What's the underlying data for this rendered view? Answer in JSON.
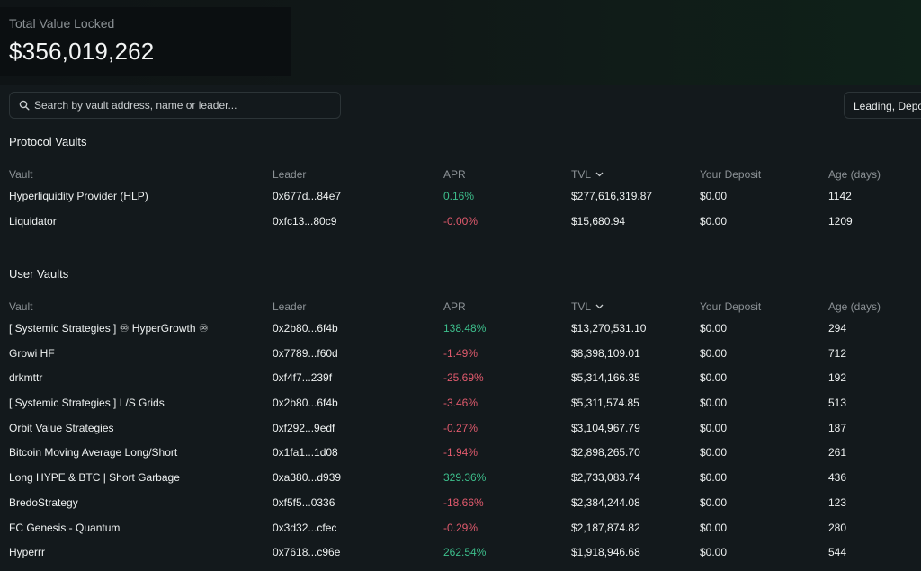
{
  "header": {
    "tvl_label": "Total Value Locked",
    "tvl_value": "$356,019,262"
  },
  "search": {
    "placeholder": "Search by vault address, name or leader...",
    "value": ""
  },
  "filter": {
    "label": "Leading, Depo"
  },
  "columns": {
    "vault": "Vault",
    "leader": "Leader",
    "apr": "APR",
    "tvl": "TVL",
    "deposit": "Your Deposit",
    "age": "Age (days)"
  },
  "protocol_vaults": {
    "title": "Protocol Vaults",
    "rows": [
      {
        "vault": "Hyperliquidity Provider (HLP)",
        "leader": "0x677d...84e7",
        "apr": "0.16%",
        "apr_sign": "pos",
        "tvl": "$277,616,319.87",
        "deposit": "$0.00",
        "age": "1142"
      },
      {
        "vault": "Liquidator",
        "leader": "0xfc13...80c9",
        "apr": "-0.00%",
        "apr_sign": "neg",
        "tvl": "$15,680.94",
        "deposit": "$0.00",
        "age": "1209"
      }
    ]
  },
  "user_vaults": {
    "title": "User Vaults",
    "rows": [
      {
        "vault": "[ Systemic Strategies ] ♾ HyperGrowth ♾",
        "leader": "0x2b80...6f4b",
        "apr": "138.48%",
        "apr_sign": "pos",
        "tvl": "$13,270,531.10",
        "deposit": "$0.00",
        "age": "294"
      },
      {
        "vault": "Growi HF",
        "leader": "0x7789...f60d",
        "apr": "-1.49%",
        "apr_sign": "neg",
        "tvl": "$8,398,109.01",
        "deposit": "$0.00",
        "age": "712"
      },
      {
        "vault": "drkmttr",
        "leader": "0xf4f7...239f",
        "apr": "-25.69%",
        "apr_sign": "neg",
        "tvl": "$5,314,166.35",
        "deposit": "$0.00",
        "age": "192"
      },
      {
        "vault": "[ Systemic Strategies ] L/S Grids",
        "leader": "0x2b80...6f4b",
        "apr": "-3.46%",
        "apr_sign": "neg",
        "tvl": "$5,311,574.85",
        "deposit": "$0.00",
        "age": "513"
      },
      {
        "vault": "Orbit Value Strategies",
        "leader": "0xf292...9edf",
        "apr": "-0.27%",
        "apr_sign": "neg",
        "tvl": "$3,104,967.79",
        "deposit": "$0.00",
        "age": "187"
      },
      {
        "vault": "Bitcoin Moving Average Long/Short",
        "leader": "0x1fa1...1d08",
        "apr": "-1.94%",
        "apr_sign": "neg",
        "tvl": "$2,898,265.70",
        "deposit": "$0.00",
        "age": "261"
      },
      {
        "vault": "Long HYPE & BTC | Short Garbage",
        "leader": "0xa380...d939",
        "apr": "329.36%",
        "apr_sign": "pos",
        "tvl": "$2,733,083.74",
        "deposit": "$0.00",
        "age": "436"
      },
      {
        "vault": "BredoStrategy",
        "leader": "0xf5f5...0336",
        "apr": "-18.66%",
        "apr_sign": "neg",
        "tvl": "$2,384,244.08",
        "deposit": "$0.00",
        "age": "123"
      },
      {
        "vault": "FC Genesis - Quantum",
        "leader": "0x3d32...cfec",
        "apr": "-0.29%",
        "apr_sign": "neg",
        "tvl": "$2,187,874.82",
        "deposit": "$0.00",
        "age": "280"
      },
      {
        "vault": "Hyperrr",
        "leader": "0x7618...c96e",
        "apr": "262.54%",
        "apr_sign": "pos",
        "tvl": "$1,918,946.68",
        "deposit": "$0.00",
        "age": "544"
      }
    ]
  },
  "colors": {
    "background": "#13191c",
    "positive": "#3dbf8c",
    "negative": "#e05a6d",
    "muted": "#8c9296"
  },
  "icons": {
    "search": "search-icon",
    "sort": "chevron-down-icon"
  }
}
